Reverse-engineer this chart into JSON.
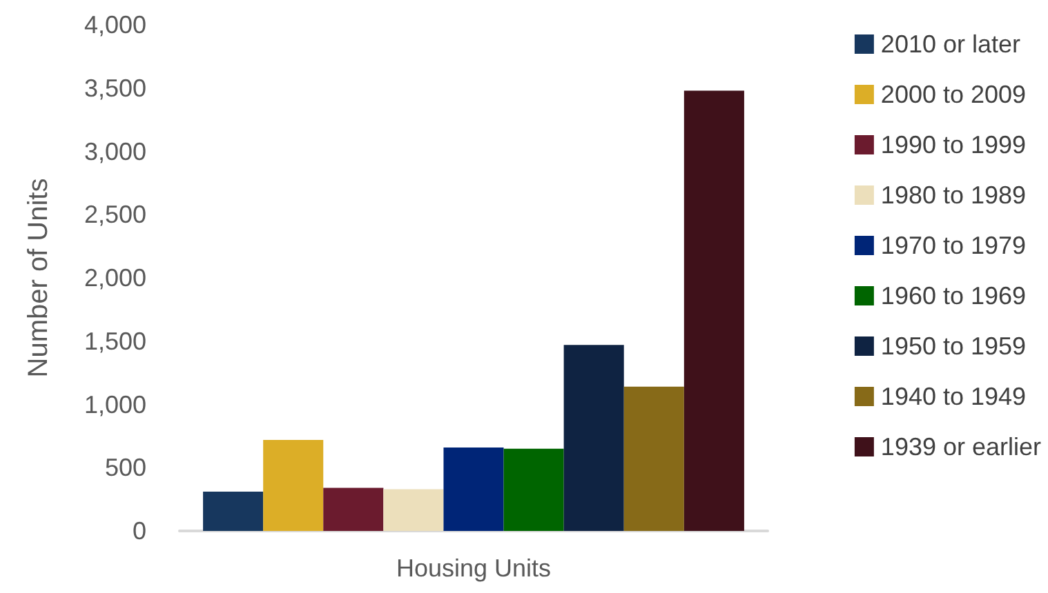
{
  "chart_data": {
    "type": "bar",
    "ylabel": "Number of Units",
    "categories": [
      "Housing Units"
    ],
    "series": [
      {
        "name": "2010 or later",
        "color": "#17375e",
        "values": [
          310
        ]
      },
      {
        "name": "2000 to 2009",
        "color": "#dcae27",
        "values": [
          720
        ]
      },
      {
        "name": "1990 to 1999",
        "color": "#6b1b2e",
        "values": [
          340
        ]
      },
      {
        "name": "1980 to 1989",
        "color": "#ecdfbb",
        "values": [
          330
        ]
      },
      {
        "name": "1970 to 1979",
        "color": "#002577",
        "values": [
          660
        ]
      },
      {
        "name": "1960 to 1969",
        "color": "#006500",
        "values": [
          650
        ]
      },
      {
        "name": "1950 to 1959",
        "color": "#0f2342",
        "values": [
          1470
        ]
      },
      {
        "name": "1940 to 1949",
        "color": "#876a18",
        "values": [
          1140
        ]
      },
      {
        "name": "1939 or earlier",
        "color": "#3f111a",
        "values": [
          3480
        ]
      }
    ],
    "ylim": [
      0,
      4000
    ],
    "yticks": [
      0,
      500,
      {
        "value": 1000,
        "label": "1,000"
      },
      {
        "value": 1500,
        "label": "1,500"
      },
      {
        "value": 2000,
        "label": "2,000"
      },
      {
        "value": 2500,
        "label": "2,500"
      },
      {
        "value": 3000,
        "label": "3,000"
      },
      {
        "value": 3500,
        "label": "3,500"
      },
      {
        "value": 4000,
        "label": "4,000"
      }
    ],
    "grid": false,
    "legend": "right"
  }
}
